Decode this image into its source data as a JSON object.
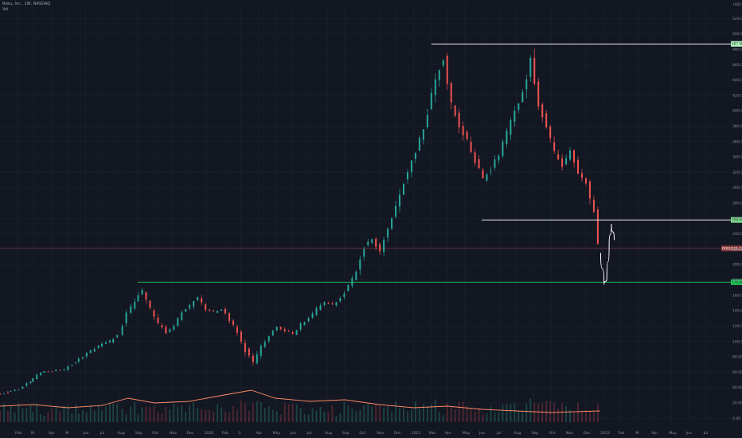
{
  "header": {
    "symbol_line": "Roku, Inc., 1W, NASDAQ",
    "volume_label": "Vol"
  },
  "colors": {
    "background": "#131722",
    "grid": "#1e2230",
    "up": "#26a69a",
    "down": "#ef5350",
    "resistance": "#ffffff",
    "support": "#22c55e",
    "price_line": "#ef5350",
    "volume_ma": "#ff8a65"
  },
  "chart_data": {
    "type": "candlestick",
    "y_unit_label": "USD",
    "ylim": [
      -5,
      540
    ],
    "y_ticks": [
      {
        "v": 0,
        "label": "0.00"
      },
      {
        "v": 20,
        "label": "20.00"
      },
      {
        "v": 40,
        "label": "40.00"
      },
      {
        "v": 60,
        "label": "60.00"
      },
      {
        "v": 80,
        "label": "80.00"
      },
      {
        "v": 100,
        "label": "100.00"
      },
      {
        "v": 120,
        "label": "120.00"
      },
      {
        "v": 140,
        "label": "140.00"
      },
      {
        "v": 160,
        "label": "160.00"
      },
      {
        "v": 180,
        "label": "180.00"
      },
      {
        "v": 200,
        "label": "200.00"
      },
      {
        "v": 220,
        "label": "220.00"
      },
      {
        "v": 240,
        "label": "240.00"
      },
      {
        "v": 260,
        "label": "260.00"
      },
      {
        "v": 280,
        "label": "280.00"
      },
      {
        "v": 300,
        "label": "300.00"
      },
      {
        "v": 320,
        "label": "320.00"
      },
      {
        "v": 340,
        "label": "340.00"
      },
      {
        "v": 360,
        "label": "360.00"
      },
      {
        "v": 380,
        "label": "380.00"
      },
      {
        "v": 400,
        "label": "400.00"
      },
      {
        "v": 420,
        "label": "420.00"
      },
      {
        "v": 440,
        "label": "440.00"
      },
      {
        "v": 460,
        "label": "460.00"
      },
      {
        "v": 480,
        "label": "480.00"
      },
      {
        "v": 500,
        "label": "500.00"
      },
      {
        "v": 520,
        "label": "520.00"
      }
    ],
    "x_range": [
      "2019-01-01",
      "2022-07-15"
    ],
    "x_ticks": [
      {
        "d": "2019-02-01",
        "label": "Feb"
      },
      {
        "d": "2019-03-01",
        "label": "M"
      },
      {
        "d": "2019-04-01",
        "label": "Apr"
      },
      {
        "d": "2019-05-01",
        "label": "M"
      },
      {
        "d": "2019-06-01",
        "label": "Jun"
      },
      {
        "d": "2019-07-01",
        "label": "Jul"
      },
      {
        "d": "2019-08-01",
        "label": "Aug"
      },
      {
        "d": "2019-09-01",
        "label": "Sep"
      },
      {
        "d": "2019-10-01",
        "label": "Oct"
      },
      {
        "d": "2019-11-01",
        "label": "Nov"
      },
      {
        "d": "2019-12-01",
        "label": "Dec"
      },
      {
        "d": "2020-01-01",
        "label": "2020"
      },
      {
        "d": "2020-02-01",
        "label": "Feb"
      },
      {
        "d": "2020-03-01",
        "label": "3"
      },
      {
        "d": "2020-04-01",
        "label": "Apr"
      },
      {
        "d": "2020-05-01",
        "label": "May"
      },
      {
        "d": "2020-06-01",
        "label": "Jun"
      },
      {
        "d": "2020-07-01",
        "label": "Jul"
      },
      {
        "d": "2020-08-01",
        "label": "Aug"
      },
      {
        "d": "2020-09-01",
        "label": "Sep"
      },
      {
        "d": "2020-10-01",
        "label": "Oct"
      },
      {
        "d": "2020-11-01",
        "label": "Nov"
      },
      {
        "d": "2020-12-01",
        "label": "Dec"
      },
      {
        "d": "2021-01-01",
        "label": "2021"
      },
      {
        "d": "2021-02-01",
        "label": "Mar"
      },
      {
        "d": "2021-03-01",
        "label": "Apr"
      },
      {
        "d": "2021-04-01",
        "label": "May"
      },
      {
        "d": "2021-05-01",
        "label": "Jun"
      },
      {
        "d": "2021-06-01",
        "label": "Jul"
      },
      {
        "d": "2021-07-01",
        "label": "Aug"
      },
      {
        "d": "2021-08-01",
        "label": "Sep"
      },
      {
        "d": "2021-09-01",
        "label": "Oct"
      },
      {
        "d": "2021-10-01",
        "label": "Nov"
      },
      {
        "d": "2021-11-01",
        "label": "Dec"
      },
      {
        "d": "2021-12-01",
        "label": "2022"
      },
      {
        "d": "2022-01-01",
        "label": "Feb"
      },
      {
        "d": "2022-02-01",
        "label": "M"
      },
      {
        "d": "2022-03-01",
        "label": "Apr"
      },
      {
        "d": "2022-04-01",
        "label": "May"
      },
      {
        "d": "2022-05-01",
        "label": "Jun"
      },
      {
        "d": "2022-06-01",
        "label": "Jul"
      }
    ],
    "price_path": [
      [
        "2019-01-01",
        32
      ],
      [
        "2019-02-01",
        40
      ],
      [
        "2019-03-01",
        58
      ],
      [
        "2019-04-01",
        62
      ],
      [
        "2019-05-01",
        78
      ],
      [
        "2019-06-01",
        92
      ],
      [
        "2019-07-01",
        105
      ],
      [
        "2019-08-01",
        118
      ],
      [
        "2019-08-20",
        140
      ],
      [
        "2019-09-05",
        170
      ],
      [
        "2019-09-25",
        140
      ],
      [
        "2019-10-10",
        112
      ],
      [
        "2019-10-25",
        118
      ],
      [
        "2019-11-10",
        135
      ],
      [
        "2019-11-25",
        145
      ],
      [
        "2019-12-10",
        158
      ],
      [
        "2019-12-31",
        140
      ],
      [
        "2020-01-20",
        140
      ],
      [
        "2020-02-10",
        130
      ],
      [
        "2020-02-25",
        110
      ],
      [
        "2020-03-15",
        70
      ],
      [
        "2020-03-30",
        88
      ],
      [
        "2020-04-15",
        110
      ],
      [
        "2020-05-01",
        120
      ],
      [
        "2020-06-01",
        112
      ],
      [
        "2020-07-01",
        140
      ],
      [
        "2020-08-01",
        150
      ],
      [
        "2020-08-25",
        155
      ],
      [
        "2020-09-15",
        180
      ],
      [
        "2020-10-05",
        230
      ],
      [
        "2020-10-30",
        220
      ],
      [
        "2020-11-20",
        275
      ],
      [
        "2020-12-10",
        330
      ],
      [
        "2020-12-31",
        360
      ],
      [
        "2021-01-20",
        400
      ],
      [
        "2021-02-05",
        440
      ],
      [
        "2021-02-18",
        480
      ],
      [
        "2021-03-05",
        410
      ],
      [
        "2021-03-20",
        385
      ],
      [
        "2021-04-05",
        360
      ],
      [
        "2021-04-20",
        340
      ],
      [
        "2021-05-05",
        310
      ],
      [
        "2021-05-20",
        322
      ],
      [
        "2021-06-05",
        350
      ],
      [
        "2021-06-20",
        400
      ],
      [
        "2021-07-05",
        420
      ],
      [
        "2021-07-26",
        485
      ],
      [
        "2021-08-10",
        400
      ],
      [
        "2021-08-25",
        370
      ],
      [
        "2021-09-10",
        330
      ],
      [
        "2021-09-25",
        350
      ],
      [
        "2021-10-10",
        318
      ],
      [
        "2021-10-20",
        330
      ],
      [
        "2021-11-01",
        300
      ],
      [
        "2021-11-10",
        265
      ],
      [
        "2021-11-20",
        230
      ],
      [
        "2021-11-26",
        220
      ]
    ],
    "candles": [
      {
        "d": "2019-01-01",
        "o": 31,
        "h": 36,
        "l": 30,
        "c": 34
      },
      {
        "d": "2019-01-20",
        "o": 34,
        "h": 40,
        "l": 33,
        "c": 38
      },
      {
        "d": "2019-02-10",
        "o": 38,
        "h": 50,
        "l": 37,
        "c": 48
      },
      {
        "d": "2019-02-28",
        "o": 48,
        "h": 62,
        "l": 47,
        "c": 60
      },
      {
        "d": "2019-03-20",
        "o": 60,
        "h": 66,
        "l": 56,
        "c": 62
      },
      {
        "d": "2019-04-10",
        "o": 62,
        "h": 68,
        "l": 58,
        "c": 64
      },
      {
        "d": "2019-05-01",
        "o": 64,
        "h": 76,
        "l": 60,
        "c": 74
      },
      {
        "d": "2019-05-20",
        "o": 74,
        "h": 86,
        "l": 72,
        "c": 84
      },
      {
        "d": "2019-06-10",
        "o": 84,
        "h": 98,
        "l": 82,
        "c": 94
      },
      {
        "d": "2019-06-30",
        "o": 94,
        "h": 104,
        "l": 90,
        "c": 100
      },
      {
        "d": "2019-07-20",
        "o": 100,
        "h": 112,
        "l": 96,
        "c": 108
      },
      {
        "d": "2019-08-05",
        "o": 108,
        "h": 140,
        "l": 106,
        "c": 136
      },
      {
        "d": "2019-08-20",
        "o": 136,
        "h": 158,
        "l": 132,
        "c": 152
      },
      {
        "d": "2019-09-02",
        "o": 152,
        "h": 176,
        "l": 148,
        "c": 166
      },
      {
        "d": "2019-09-16",
        "o": 166,
        "h": 170,
        "l": 138,
        "c": 142
      },
      {
        "d": "2019-09-30",
        "o": 142,
        "h": 146,
        "l": 118,
        "c": 122
      },
      {
        "d": "2019-10-14",
        "o": 122,
        "h": 128,
        "l": 108,
        "c": 112
      },
      {
        "d": "2019-10-28",
        "o": 112,
        "h": 124,
        "l": 110,
        "c": 120
      },
      {
        "d": "2019-11-11",
        "o": 120,
        "h": 142,
        "l": 118,
        "c": 138
      },
      {
        "d": "2019-11-25",
        "o": 138,
        "h": 152,
        "l": 134,
        "c": 146
      },
      {
        "d": "2019-12-09",
        "o": 146,
        "h": 164,
        "l": 142,
        "c": 158
      },
      {
        "d": "2019-12-23",
        "o": 158,
        "h": 160,
        "l": 138,
        "c": 142
      },
      {
        "d": "2020-01-06",
        "o": 142,
        "h": 148,
        "l": 132,
        "c": 138
      },
      {
        "d": "2020-01-20",
        "o": 138,
        "h": 146,
        "l": 134,
        "c": 142
      },
      {
        "d": "2020-02-03",
        "o": 142,
        "h": 144,
        "l": 124,
        "c": 128
      },
      {
        "d": "2020-02-17",
        "o": 128,
        "h": 132,
        "l": 108,
        "c": 112
      },
      {
        "d": "2020-03-02",
        "o": 112,
        "h": 114,
        "l": 84,
        "c": 88
      },
      {
        "d": "2020-03-16",
        "o": 88,
        "h": 92,
        "l": 60,
        "c": 72
      },
      {
        "d": "2020-03-30",
        "o": 72,
        "h": 96,
        "l": 70,
        "c": 92
      },
      {
        "d": "2020-04-13",
        "o": 92,
        "h": 112,
        "l": 90,
        "c": 108
      },
      {
        "d": "2020-04-27",
        "o": 108,
        "h": 122,
        "l": 104,
        "c": 118
      },
      {
        "d": "2020-05-11",
        "o": 118,
        "h": 124,
        "l": 110,
        "c": 114
      },
      {
        "d": "2020-05-25",
        "o": 114,
        "h": 120,
        "l": 106,
        "c": 110
      },
      {
        "d": "2020-06-08",
        "o": 110,
        "h": 126,
        "l": 108,
        "c": 122
      },
      {
        "d": "2020-06-22",
        "o": 122,
        "h": 134,
        "l": 118,
        "c": 130
      },
      {
        "d": "2020-07-06",
        "o": 130,
        "h": 146,
        "l": 126,
        "c": 142
      },
      {
        "d": "2020-07-20",
        "o": 142,
        "h": 156,
        "l": 138,
        "c": 150
      },
      {
        "d": "2020-08-03",
        "o": 150,
        "h": 158,
        "l": 144,
        "c": 148
      },
      {
        "d": "2020-08-17",
        "o": 148,
        "h": 160,
        "l": 146,
        "c": 156
      },
      {
        "d": "2020-08-31",
        "o": 156,
        "h": 176,
        "l": 152,
        "c": 172
      },
      {
        "d": "2020-09-14",
        "o": 172,
        "h": 196,
        "l": 168,
        "c": 190
      },
      {
        "d": "2020-09-28",
        "o": 190,
        "h": 230,
        "l": 186,
        "c": 224
      },
      {
        "d": "2020-10-12",
        "o": 224,
        "h": 240,
        "l": 214,
        "c": 232
      },
      {
        "d": "2020-10-26",
        "o": 232,
        "h": 236,
        "l": 210,
        "c": 218
      },
      {
        "d": "2020-11-09",
        "o": 218,
        "h": 250,
        "l": 214,
        "c": 246
      },
      {
        "d": "2020-11-23",
        "o": 246,
        "h": 280,
        "l": 242,
        "c": 274
      },
      {
        "d": "2020-12-07",
        "o": 274,
        "h": 316,
        "l": 268,
        "c": 308
      },
      {
        "d": "2020-12-21",
        "o": 308,
        "h": 342,
        "l": 300,
        "c": 334
      },
      {
        "d": "2021-01-04",
        "o": 334,
        "h": 372,
        "l": 326,
        "c": 364
      },
      {
        "d": "2021-01-18",
        "o": 364,
        "h": 404,
        "l": 352,
        "c": 396
      },
      {
        "d": "2021-02-01",
        "o": 396,
        "h": 452,
        "l": 388,
        "c": 442
      },
      {
        "d": "2021-02-15",
        "o": 442,
        "h": 486,
        "l": 430,
        "c": 466
      },
      {
        "d": "2021-03-01",
        "o": 466,
        "h": 472,
        "l": 400,
        "c": 408
      },
      {
        "d": "2021-03-15",
        "o": 408,
        "h": 416,
        "l": 372,
        "c": 380
      },
      {
        "d": "2021-03-29",
        "o": 380,
        "h": 394,
        "l": 350,
        "c": 360
      },
      {
        "d": "2021-04-12",
        "o": 360,
        "h": 366,
        "l": 326,
        "c": 334
      },
      {
        "d": "2021-04-26",
        "o": 334,
        "h": 340,
        "l": 300,
        "c": 312
      },
      {
        "d": "2021-05-10",
        "o": 312,
        "h": 330,
        "l": 296,
        "c": 324
      },
      {
        "d": "2021-05-24",
        "o": 324,
        "h": 350,
        "l": 318,
        "c": 344
      },
      {
        "d": "2021-06-07",
        "o": 344,
        "h": 380,
        "l": 338,
        "c": 372
      },
      {
        "d": "2021-06-21",
        "o": 372,
        "h": 406,
        "l": 366,
        "c": 400
      },
      {
        "d": "2021-07-05",
        "o": 400,
        "h": 430,
        "l": 394,
        "c": 422
      },
      {
        "d": "2021-07-19",
        "o": 422,
        "h": 490,
        "l": 416,
        "c": 470
      },
      {
        "d": "2021-08-02",
        "o": 470,
        "h": 476,
        "l": 400,
        "c": 408
      },
      {
        "d": "2021-08-16",
        "o": 408,
        "h": 414,
        "l": 370,
        "c": 378
      },
      {
        "d": "2021-08-30",
        "o": 378,
        "h": 384,
        "l": 340,
        "c": 346
      },
      {
        "d": "2021-09-13",
        "o": 346,
        "h": 356,
        "l": 322,
        "c": 330
      },
      {
        "d": "2021-09-27",
        "o": 330,
        "h": 354,
        "l": 324,
        "c": 348
      },
      {
        "d": "2021-10-11",
        "o": 348,
        "h": 352,
        "l": 312,
        "c": 318
      },
      {
        "d": "2021-10-25",
        "o": 318,
        "h": 334,
        "l": 300,
        "c": 306
      },
      {
        "d": "2021-11-08",
        "o": 306,
        "h": 308,
        "l": 262,
        "c": 268
      },
      {
        "d": "2021-11-22",
        "o": 268,
        "h": 270,
        "l": 216,
        "c": 222
      }
    ],
    "lines": {
      "resistance": {
        "y": 487,
        "from": "2021-02-01",
        "to": "2022-07-15",
        "label": "487.90"
      },
      "mid_support": {
        "y": 258,
        "from": "2021-05-01",
        "to": "2022-07-15",
        "label": "258.00"
      },
      "long_support": {
        "y": 177,
        "from": "2019-09-01",
        "to": "2022-07-15",
        "label": "176.60"
      },
      "current_price": {
        "y": 221,
        "label": "221.12",
        "ticker": "ROKU"
      }
    },
    "projection": [
      [
        "2021-11-27",
        215
      ],
      [
        "2021-12-03",
        174
      ],
      [
        "2021-12-08",
        182
      ],
      [
        "2021-12-12",
        225
      ],
      [
        "2021-12-16",
        253
      ],
      [
        "2021-12-21",
        232
      ]
    ],
    "volume_ma": [
      [
        "2019-01-01",
        20
      ],
      [
        "2019-03-01",
        22
      ],
      [
        "2019-05-01",
        18
      ],
      [
        "2019-07-01",
        21
      ],
      [
        "2019-08-15",
        30
      ],
      [
        "2019-10-01",
        24
      ],
      [
        "2019-12-01",
        26
      ],
      [
        "2020-02-01",
        34
      ],
      [
        "2020-03-20",
        40
      ],
      [
        "2020-05-01",
        30
      ],
      [
        "2020-07-01",
        26
      ],
      [
        "2020-09-01",
        28
      ],
      [
        "2020-11-01",
        22
      ],
      [
        "2021-01-01",
        18
      ],
      [
        "2021-03-01",
        20
      ],
      [
        "2021-05-01",
        16
      ],
      [
        "2021-07-01",
        14
      ],
      [
        "2021-09-01",
        12
      ],
      [
        "2021-11-26",
        14
      ]
    ]
  }
}
